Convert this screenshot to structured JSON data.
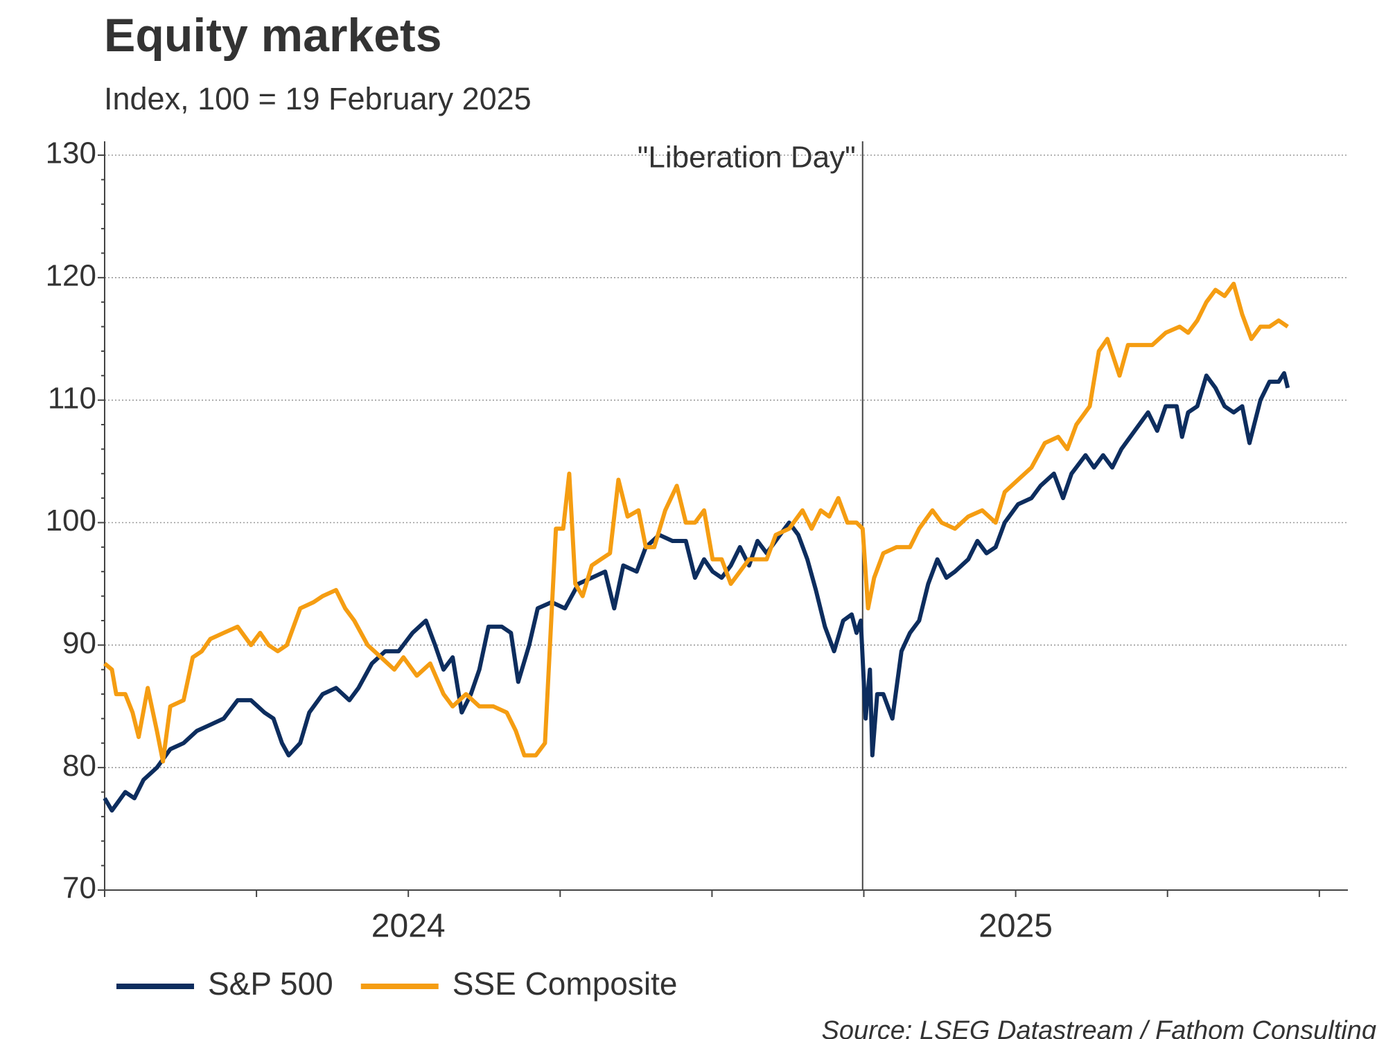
{
  "chart_data": {
    "type": "line",
    "title": "Equity markets",
    "subtitle": "Index, 100 = 19 February 2025",
    "source": "Source: LSEG Datastream / Fathom Consulting",
    "annotation": {
      "text": "\"Liberation Day\"",
      "x": 2025.248
    },
    "xlim": [
      2024,
      2026.047
    ],
    "xticks": [
      {
        "value": 2024.5,
        "label": "2024"
      },
      {
        "value": 2025.5,
        "label": "2025"
      }
    ],
    "xminorticks": [
      2024,
      2024.25,
      2024.5,
      2024.75,
      2025,
      2025.25,
      2025.5,
      2025.75,
      2026
    ],
    "ylim": [
      70,
      130
    ],
    "yticks": [
      70,
      80,
      90,
      100,
      110,
      120,
      130
    ],
    "yminorticks": [
      72,
      74,
      76,
      78,
      82,
      84,
      86,
      88,
      92,
      94,
      96,
      98,
      102,
      104,
      106,
      108,
      112,
      114,
      116,
      118,
      122,
      124,
      126,
      128
    ],
    "grid": true,
    "legend": "bottom-left",
    "series": [
      {
        "name": "S&P 500",
        "color": "#0d2d5e",
        "x": [
          2024,
          2024.012,
          2024.034,
          2024.049,
          2024.064,
          2024.086,
          2024.108,
          2024.13,
          2024.152,
          2024.174,
          2024.196,
          2024.219,
          2024.241,
          2024.263,
          2024.278,
          2024.292,
          2024.303,
          2024.322,
          2024.337,
          2024.359,
          2024.381,
          2024.403,
          2024.418,
          2024.44,
          2024.462,
          2024.484,
          2024.507,
          2024.529,
          2024.544,
          2024.558,
          2024.573,
          2024.588,
          2024.603,
          2024.617,
          2024.632,
          2024.654,
          2024.669,
          2024.681,
          2024.699,
          2024.713,
          2024.736,
          2024.758,
          2024.78,
          2024.802,
          2024.824,
          2024.839,
          2024.854,
          2024.876,
          2024.891,
          2024.913,
          2024.935,
          2024.957,
          2024.972,
          2024.987,
          2025.001,
          2025.016,
          2025.031,
          2025.046,
          2025.061,
          2025.075,
          2025.09,
          2025.112,
          2025.127,
          2025.142,
          2025.157,
          2025.171,
          2025.186,
          2025.201,
          2025.216,
          2025.23,
          2025.238,
          2025.245,
          2025.253,
          2025.26,
          2025.264,
          2025.272,
          2025.282,
          2025.297,
          2025.312,
          2025.326,
          2025.341,
          2025.356,
          2025.371,
          2025.386,
          2025.4,
          2025.422,
          2025.437,
          2025.452,
          2025.467,
          2025.482,
          2025.504,
          2025.526,
          2025.541,
          2025.563,
          2025.578,
          2025.592,
          2025.615,
          2025.629,
          2025.644,
          2025.659,
          2025.674,
          2025.696,
          2025.718,
          2025.733,
          2025.747,
          2025.765,
          2025.774,
          2025.784,
          2025.799,
          2025.814,
          2025.829,
          2025.844,
          2025.859,
          2025.873,
          2025.885,
          2025.903,
          2025.918,
          2025.933,
          2025.942,
          2025.948
        ],
        "values": [
          77.5,
          76.5,
          78,
          77.5,
          79,
          80,
          81.5,
          82,
          83,
          83.5,
          84,
          85.5,
          85.5,
          84.5,
          84,
          82,
          81,
          82,
          84.5,
          86,
          86.5,
          85.5,
          86.5,
          88.5,
          89.5,
          89.5,
          91,
          92,
          90,
          88,
          89,
          84.5,
          86,
          88,
          91.5,
          91.5,
          91,
          87,
          90,
          93,
          93.5,
          93,
          95,
          95.5,
          96,
          93,
          96.5,
          96,
          98,
          99,
          98.5,
          98.5,
          95.5,
          97,
          96,
          95.5,
          96.5,
          98,
          96.5,
          98.5,
          97.5,
          99,
          100,
          99,
          97,
          94.5,
          91.5,
          89.5,
          92,
          92.5,
          91,
          92,
          84,
          88,
          81,
          86,
          86,
          84,
          89.5,
          91,
          92,
          95,
          97,
          95.5,
          96,
          97,
          98.5,
          97.5,
          98,
          100,
          101.5,
          102,
          103,
          104,
          102,
          104,
          105.5,
          104.5,
          105.5,
          104.5,
          106,
          107.5,
          109,
          107.5,
          109.5,
          109.5,
          107,
          109,
          109.5,
          112,
          111,
          109.5,
          109,
          109.5,
          106.5,
          110,
          111.5,
          111.5,
          112.2,
          111
        ]
      },
      {
        "name": "SSE Composite",
        "color": "#f59d12",
        "x": [
          2024,
          2024.012,
          2024.019,
          2024.034,
          2024.046,
          2024.056,
          2024.071,
          2024.086,
          2024.096,
          2024.108,
          2024.13,
          2024.145,
          2024.16,
          2024.174,
          2024.196,
          2024.219,
          2024.241,
          2024.256,
          2024.27,
          2024.285,
          2024.3,
          2024.322,
          2024.344,
          2024.359,
          2024.381,
          2024.396,
          2024.411,
          2024.433,
          2024.455,
          2024.477,
          2024.492,
          2024.514,
          2024.536,
          2024.558,
          2024.573,
          2024.595,
          2024.617,
          2024.64,
          2024.662,
          2024.677,
          2024.691,
          2024.71,
          2024.725,
          2024.743,
          2024.755,
          2024.765,
          2024.775,
          2024.787,
          2024.802,
          2024.817,
          2024.832,
          2024.846,
          2024.861,
          2024.879,
          2024.891,
          2024.905,
          2024.923,
          2024.942,
          2024.957,
          2024.972,
          2024.987,
          2025.001,
          2025.016,
          2025.031,
          2025.046,
          2025.061,
          2025.075,
          2025.09,
          2025.105,
          2025.127,
          2025.149,
          2025.164,
          2025.179,
          2025.193,
          2025.208,
          2025.223,
          2025.238,
          2025.248,
          2025.257,
          2025.267,
          2025.282,
          2025.304,
          2025.326,
          2025.341,
          2025.363,
          2025.378,
          2025.4,
          2025.422,
          2025.445,
          2025.467,
          2025.482,
          2025.504,
          2025.526,
          2025.548,
          2025.57,
          2025.585,
          2025.6,
          2025.622,
          2025.637,
          2025.651,
          2025.671,
          2025.685,
          2025.703,
          2025.725,
          2025.747,
          2025.77,
          2025.784,
          2025.799,
          2025.814,
          2025.829,
          2025.844,
          2025.859,
          2025.873,
          2025.888,
          2025.903,
          2025.918,
          2025.933,
          2025.948
        ],
        "values": [
          88.5,
          88,
          86,
          86,
          84.5,
          82.5,
          86.5,
          83,
          80.5,
          85,
          85.5,
          89,
          89.5,
          90.5,
          91,
          91.5,
          90,
          91,
          90,
          89.5,
          90,
          93,
          93.5,
          94,
          94.5,
          93,
          92,
          90,
          89,
          88,
          89,
          87.5,
          88.5,
          86,
          85,
          86,
          85,
          85,
          84.5,
          83,
          81,
          81,
          82,
          99.5,
          99.5,
          104,
          95,
          94,
          96.5,
          97,
          97.5,
          103.5,
          100.5,
          101,
          98,
          98,
          101,
          103,
          100,
          100,
          101,
          97,
          97,
          95,
          96,
          97,
          97,
          97,
          99,
          99.5,
          101,
          99.5,
          101,
          100.5,
          102,
          100,
          100,
          99.5,
          93,
          95.5,
          97.5,
          98,
          98,
          99.5,
          101,
          100,
          99.5,
          100.5,
          101,
          100,
          102.5,
          103.5,
          104.5,
          106.5,
          107,
          106,
          108,
          109.5,
          114,
          115,
          112,
          114.5,
          114.5,
          114.5,
          115.5,
          116,
          115.5,
          116.5,
          118,
          119,
          118.5,
          119.5,
          117,
          115,
          116,
          116,
          116.5,
          116
        ]
      }
    ]
  }
}
